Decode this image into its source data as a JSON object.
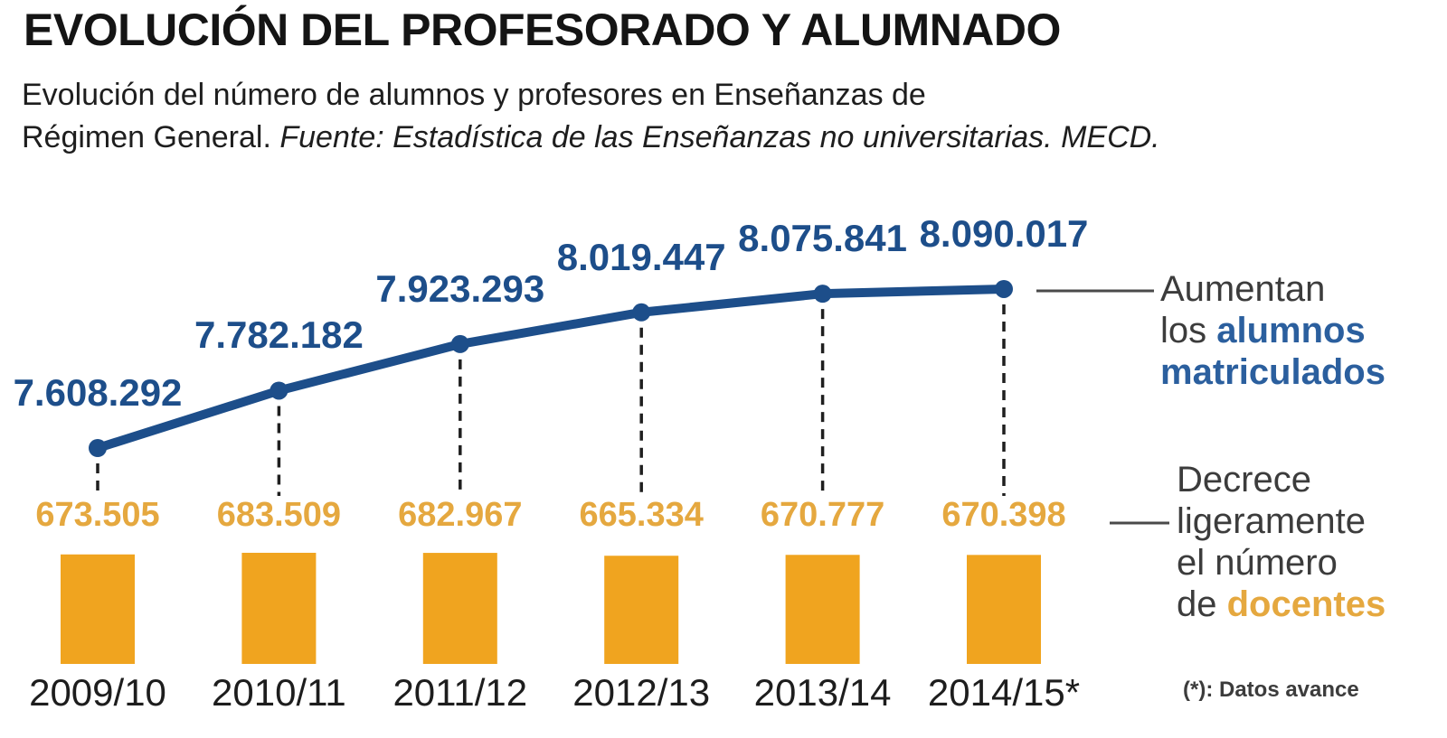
{
  "header": {
    "title": "EVOLUCIÓN DEL PROFESORADO Y ALUMNADO",
    "subtitle_line1": "Evolución del número de alumnos y profesores en Enseñanzas de",
    "subtitle_line2": "Régimen General.",
    "subtitle_source": "Fuente: Estadística de las Enseñanzas no universitarias. MECD."
  },
  "chart_data": {
    "type": "line+bar",
    "categories": [
      "2009/10",
      "2010/11",
      "2011/12",
      "2012/13",
      "2013/14",
      "2014/15*"
    ],
    "series": [
      {
        "name": "Alumnos matriculados",
        "type": "line",
        "color": "#1d4e8a",
        "values": [
          7608292,
          7782182,
          7923293,
          8019447,
          8075841,
          8090017
        ],
        "value_labels": [
          "7.608.292",
          "7.782.182",
          "7.923.293",
          "8.019.447",
          "8.075.841",
          "8.090.017"
        ]
      },
      {
        "name": "Docentes",
        "type": "bar",
        "color": "#f0a41f",
        "values": [
          673505,
          683509,
          682967,
          665334,
          670777,
          670398
        ],
        "value_labels": [
          "673.505",
          "683.509",
          "682.967",
          "665.334",
          "670.777",
          "670.398"
        ]
      }
    ],
    "annotations": {
      "students": {
        "line1": "Aumentan",
        "line2_plain": "los ",
        "line2_accent": "alumnos",
        "line3_accent": "matriculados"
      },
      "teachers": {
        "line1": "Decrece",
        "line2": "ligeramente",
        "line3": "el número",
        "line4_plain": "de ",
        "line4_accent": "docentes"
      }
    },
    "footnote": "(*): Datos avance",
    "grid": false,
    "legend": "none"
  },
  "colors": {
    "students_blue": "#1d4e8a",
    "annotation_blue": "#2b5f9e",
    "teachers_bar_orange": "#f0a41f",
    "teachers_label_orange": "#e5a83f",
    "annotation_gray": "#3c3c3c",
    "connector_gray": "#4a4a4a",
    "dash_black": "#1f1f1f",
    "text_black": "#141414"
  }
}
